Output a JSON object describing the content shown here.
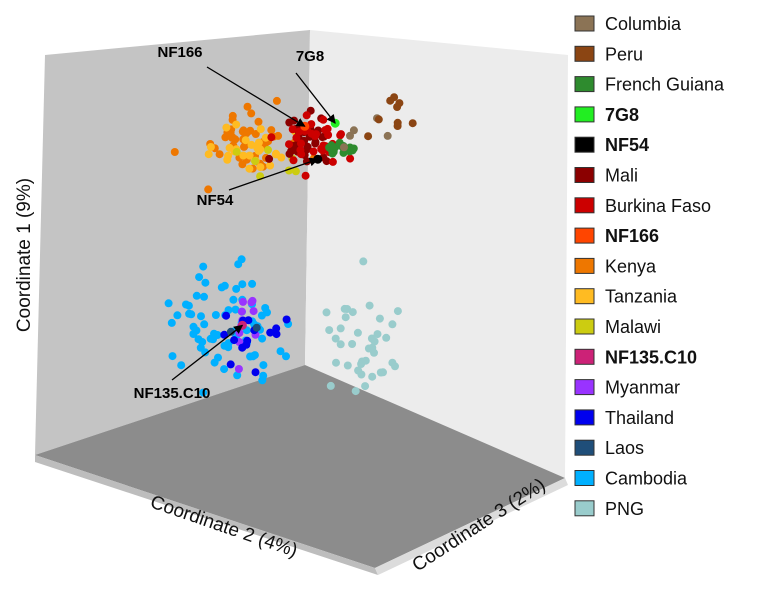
{
  "chart_data": {
    "type": "scatter",
    "projection": "3d",
    "axes": {
      "x": {
        "label": "Coordinate 2 (4%)"
      },
      "y": {
        "label": "Coordinate 3 (2%)"
      },
      "z": {
        "label": "Coordinate 1 (9%)"
      }
    },
    "grid": false,
    "legend": {
      "placement": "right",
      "entries": [
        {
          "name": "Columbia",
          "color": "#8b7355",
          "bold": false
        },
        {
          "name": "Peru",
          "color": "#8b4513",
          "bold": false
        },
        {
          "name": "French Guiana",
          "color": "#2e8b2e",
          "bold": false
        },
        {
          "name": "7G8",
          "color": "#22ee22",
          "bold": true
        },
        {
          "name": "NF54",
          "color": "#000000",
          "bold": true
        },
        {
          "name": "Mali",
          "color": "#8b0000",
          "bold": false
        },
        {
          "name": "Burkina Faso",
          "color": "#cc0000",
          "bold": false
        },
        {
          "name": "NF166",
          "color": "#ff4500",
          "bold": true
        },
        {
          "name": "Kenya",
          "color": "#ee7700",
          "bold": false
        },
        {
          "name": "Tanzania",
          "color": "#ffbb22",
          "bold": false
        },
        {
          "name": "Malawi",
          "color": "#cccc11",
          "bold": false
        },
        {
          "name": "NF135.C10",
          "color": "#cc2277",
          "bold": true
        },
        {
          "name": "Myanmar",
          "color": "#9933ff",
          "bold": false
        },
        {
          "name": "Thailand",
          "color": "#0000ee",
          "bold": false
        },
        {
          "name": "Laos",
          "color": "#1f4e79",
          "bold": false
        },
        {
          "name": "Cambodia",
          "color": "#00b0ff",
          "bold": false
        },
        {
          "name": "PNG",
          "color": "#99cccc",
          "bold": false
        }
      ]
    },
    "annotations": [
      {
        "text": "NF166",
        "target": "NF166"
      },
      {
        "text": "7G8",
        "target": "7G8"
      },
      {
        "text": "NF54",
        "target": "NF54"
      },
      {
        "text": "NF135.C10",
        "target": "NF135.C10"
      }
    ],
    "clusters": [
      {
        "series": "Kenya",
        "center": [
          -0.55,
          0.55,
          0.78
        ],
        "spread": [
          0.17,
          0.08,
          0.08
        ],
        "n": 45
      },
      {
        "series": "Tanzania",
        "center": [
          -0.45,
          0.55,
          0.74
        ],
        "spread": [
          0.14,
          0.08,
          0.08
        ],
        "n": 28
      },
      {
        "series": "Malawi",
        "center": [
          -0.38,
          0.55,
          0.7
        ],
        "spread": [
          0.08,
          0.05,
          0.06
        ],
        "n": 8
      },
      {
        "series": "Mali",
        "center": [
          -0.12,
          0.55,
          0.76
        ],
        "spread": [
          0.09,
          0.06,
          0.07
        ],
        "n": 38
      },
      {
        "series": "Burkina Faso",
        "center": [
          -0.1,
          0.55,
          0.75
        ],
        "spread": [
          0.1,
          0.06,
          0.08
        ],
        "n": 32
      },
      {
        "series": "French Guiana",
        "center": [
          0.1,
          0.55,
          0.7
        ],
        "spread": [
          0.03,
          0.03,
          0.02
        ],
        "n": 18
      },
      {
        "series": "Columbia",
        "center": [
          0.28,
          0.55,
          0.77
        ],
        "spread": [
          0.13,
          0.05,
          0.04
        ],
        "n": 5
      },
      {
        "series": "Peru",
        "center": [
          0.42,
          0.55,
          0.84
        ],
        "spread": [
          0.07,
          0.05,
          0.05
        ],
        "n": 9
      },
      {
        "series": "Cambodia",
        "center": [
          -0.72,
          0.55,
          -0.25
        ],
        "spread": [
          0.2,
          0.08,
          0.15
        ],
        "n": 75
      },
      {
        "series": "Myanmar",
        "center": [
          -0.52,
          0.55,
          -0.22
        ],
        "spread": [
          0.1,
          0.06,
          0.07
        ],
        "n": 12
      },
      {
        "series": "Thailand",
        "center": [
          -0.52,
          0.55,
          -0.32
        ],
        "spread": [
          0.11,
          0.06,
          0.09
        ],
        "n": 15
      },
      {
        "series": "Laos",
        "center": [
          -0.5,
          0.55,
          -0.26
        ],
        "spread": [
          0.05,
          0.03,
          0.03
        ],
        "n": 2
      },
      {
        "series": "PNG",
        "center": [
          0.58,
          0.2,
          -0.55
        ],
        "spread": [
          0.08,
          0.12,
          0.18
        ],
        "n": 38
      }
    ],
    "highlighted_points": [
      {
        "series": "7G8",
        "position": [
          0.06,
          0.55,
          0.84
        ]
      },
      {
        "series": "NF54",
        "position": [
          -0.06,
          0.55,
          0.65
        ]
      },
      {
        "series": "NF166",
        "position": [
          -0.15,
          0.55,
          0.84
        ]
      },
      {
        "series": "NF135.C10",
        "position": [
          -0.58,
          0.55,
          -0.23
        ]
      }
    ]
  }
}
